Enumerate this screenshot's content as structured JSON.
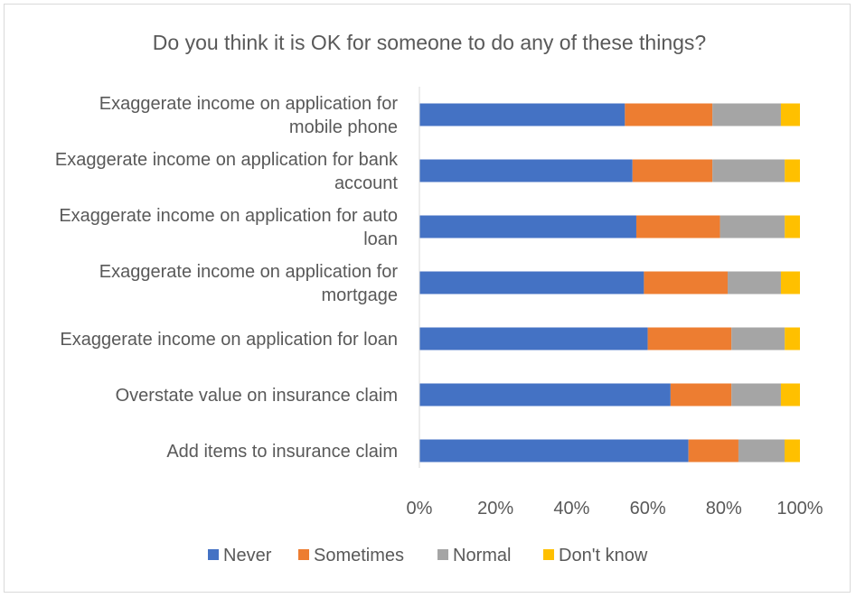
{
  "chart_data": {
    "type": "bar",
    "orientation": "horizontal",
    "stacked": true,
    "percent_stacked": true,
    "title": "Do you think it is OK for someone to do any of these things?",
    "categories": [
      [
        "Exaggerate income on application for",
        "mobile phone"
      ],
      [
        "Exaggerate income on application for bank",
        "account"
      ],
      [
        "Exaggerate income on application for auto",
        "loan"
      ],
      [
        "Exaggerate income on application for",
        "mortgage"
      ],
      [
        "Exaggerate income on application for loan"
      ],
      [
        "Overstate value on insurance claim"
      ],
      [
        "Add items to insurance claim"
      ]
    ],
    "series": [
      {
        "name": "Never",
        "color": "#4472c4",
        "values": [
          54,
          56,
          57,
          59,
          60,
          66,
          70
        ]
      },
      {
        "name": "Sometimes",
        "color": "#ed7d31",
        "values": [
          23,
          21,
          22,
          22,
          22,
          16,
          13
        ]
      },
      {
        "name": "Normal",
        "color": "#a5a5a5",
        "values": [
          18,
          19,
          17,
          14,
          14,
          13,
          12
        ]
      },
      {
        "name": "Don't know",
        "color": "#ffc000",
        "values": [
          5,
          4,
          4,
          5,
          4,
          5,
          4
        ]
      }
    ],
    "xlim": [
      0,
      100
    ],
    "xticks": [
      "0%",
      "20%",
      "40%",
      "60%",
      "80%",
      "100%"
    ],
    "xlabel": "",
    "ylabel": "",
    "grid": false,
    "legend_position": "bottom"
  }
}
